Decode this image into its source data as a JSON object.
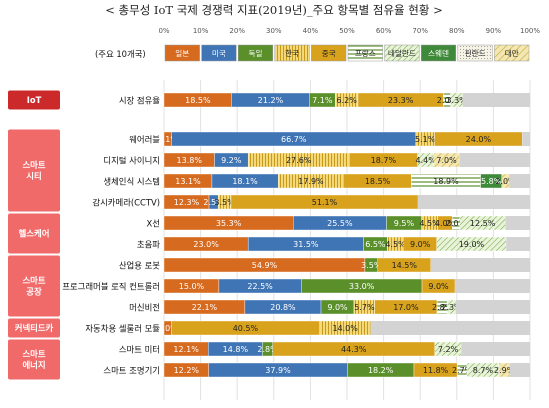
{
  "title": "< 총무성 IoT 국제 경쟁력 지표(2019년)_주요 항목별 점유율 현황 >",
  "legend_caption": "(주요 10개국)",
  "chart_data": {
    "type": "bar",
    "orientation": "horizontal",
    "stacked": "percent",
    "xlim": [
      0,
      100
    ],
    "xticks": [
      "0%",
      "10%",
      "20%",
      "30%",
      "40%",
      "50%",
      "60%",
      "70%",
      "80%",
      "90%",
      "100%"
    ],
    "countries": [
      "일본",
      "미국",
      "독일",
      "한국",
      "중국",
      "프랑스",
      "네덜란드",
      "스웨덴",
      "핀란드",
      "대만"
    ],
    "colors": {
      "일본": "#d66a1f",
      "미국": "#3f74b5",
      "독일": "#5a8f2a",
      "한국": "#ebc85a",
      "중국": "#d8a21d",
      "프랑스": "#c8d4ea",
      "네덜란드": "#d8ebc3",
      "스웨덴": "#3f8a3a",
      "핀란드": "#f1efe2",
      "대만": "#efe19c",
      "기타": "#d3d3d3"
    },
    "groups": [
      {
        "label": "IoT",
        "color": "#cc2a2a",
        "items": [
          "시장 점유율"
        ]
      },
      {
        "label": "스마트\n시티",
        "color": "#f06a6a",
        "items": [
          "웨어러블",
          "디지털 사이니지",
          "생체인식 시스템",
          "감시카메라(CCTV)"
        ]
      },
      {
        "label": "헬스케어",
        "color": "#f06a6a",
        "items": [
          "X선",
          "초음파"
        ]
      },
      {
        "label": "스마트\n공장",
        "color": "#f06a6a",
        "items": [
          "산업용 로봇",
          "프로그래머블 로직 컨트롤러",
          "머신비전"
        ]
      },
      {
        "label": "커넥티드카",
        "color": "#f06a6a",
        "items": [
          "자동차용 셀룰러 모듈"
        ]
      },
      {
        "label": "스마트\n에너지",
        "color": "#f06a6a",
        "items": [
          "스마트 미터",
          "스마트 조명기기"
        ]
      }
    ],
    "rows": [
      {
        "label": "시장 점유율",
        "segments": [
          {
            "country": "일본",
            "value": 18.5,
            "text": "18.5%"
          },
          {
            "country": "미국",
            "value": 21.2,
            "text": "21.2%"
          },
          {
            "country": "독일",
            "value": 7.1,
            "text": "7.1%"
          },
          {
            "country": "한국",
            "value": 6.2,
            "text": "6.2%"
          },
          {
            "country": "중국",
            "value": 23.3,
            "text": "23.3%"
          },
          {
            "country": "프랑스",
            "value": 2.0,
            "text": "2.0%"
          },
          {
            "country": "네덜란드",
            "value": 3.3,
            "text": "3.3%"
          },
          {
            "country": "기타",
            "value": 18.4,
            "text": ""
          }
        ]
      },
      {
        "label": "웨어러블",
        "segments": [
          {
            "country": "일본",
            "value": 2.1,
            "text": "2.1%"
          },
          {
            "country": "미국",
            "value": 66.7,
            "text": "66.7%"
          },
          {
            "country": "한국",
            "value": 5.1,
            "text": "5.1%"
          },
          {
            "country": "중국",
            "value": 24.0,
            "text": "24.0%"
          },
          {
            "country": "기타",
            "value": 2.1,
            "text": ""
          }
        ]
      },
      {
        "label": "디지털 사이니지",
        "segments": [
          {
            "country": "일본",
            "value": 13.8,
            "text": "13.8%"
          },
          {
            "country": "미국",
            "value": 9.2,
            "text": "9.2%"
          },
          {
            "country": "한국",
            "value": 27.6,
            "text": "27.6%"
          },
          {
            "country": "중국",
            "value": 18.7,
            "text": "18.7%"
          },
          {
            "country": "네덜란드",
            "value": 4.4,
            "text": "4.4%"
          },
          {
            "country": "대만",
            "value": 7.0,
            "text": "7.0%"
          },
          {
            "country": "기타",
            "value": 19.3,
            "text": ""
          }
        ]
      },
      {
        "label": "생체인식 시스템",
        "segments": [
          {
            "country": "일본",
            "value": 13.1,
            "text": "13.1%"
          },
          {
            "country": "미국",
            "value": 18.1,
            "text": "18.1%"
          },
          {
            "country": "한국",
            "value": 17.9,
            "text": "17.9%"
          },
          {
            "country": "중국",
            "value": 18.5,
            "text": "18.5%"
          },
          {
            "country": "프랑스",
            "value": 18.9,
            "text": "18.9%"
          },
          {
            "country": "스웨덴",
            "value": 5.8,
            "text": "5.8%"
          },
          {
            "country": "대만",
            "value": 2.0,
            "text": "2.0%"
          },
          {
            "country": "기타",
            "value": 5.7,
            "text": ""
          }
        ]
      },
      {
        "label": "감시카메라(CCTV)",
        "segments": [
          {
            "country": "일본",
            "value": 12.3,
            "text": "12.3%"
          },
          {
            "country": "미국",
            "value": 2.5,
            "text": "2.5%"
          },
          {
            "country": "한국",
            "value": 3.5,
            "text": "3.5%"
          },
          {
            "country": "중국",
            "value": 51.1,
            "text": "51.1%"
          },
          {
            "country": "기타",
            "value": 30.6,
            "text": ""
          }
        ]
      },
      {
        "label": "X선",
        "segments": [
          {
            "country": "일본",
            "value": 35.3,
            "text": "35.3%"
          },
          {
            "country": "미국",
            "value": 25.5,
            "text": "25.5%"
          },
          {
            "country": "독일",
            "value": 9.5,
            "text": "9.5%"
          },
          {
            "country": "한국",
            "value": 4.5,
            "text": "4.5%"
          },
          {
            "country": "중국",
            "value": 4.0,
            "text": "4.0%"
          },
          {
            "country": "프랑스",
            "value": 2.0,
            "text": "2.0%"
          },
          {
            "country": "네덜란드",
            "value": 12.5,
            "text": "12.5%"
          },
          {
            "country": "기타",
            "value": 6.7,
            "text": ""
          }
        ]
      },
      {
        "label": "초음파",
        "segments": [
          {
            "country": "일본",
            "value": 23.0,
            "text": "23.0%"
          },
          {
            "country": "미국",
            "value": 31.5,
            "text": "31.5%"
          },
          {
            "country": "독일",
            "value": 6.5,
            "text": "6.5%"
          },
          {
            "country": "한국",
            "value": 4.5,
            "text": "4.5%"
          },
          {
            "country": "중국",
            "value": 9.0,
            "text": "9.0%"
          },
          {
            "country": "네덜란드",
            "value": 19.0,
            "text": "19.0%"
          },
          {
            "country": "기타",
            "value": 6.5,
            "text": ""
          }
        ]
      },
      {
        "label": "산업용 로봇",
        "segments": [
          {
            "country": "일본",
            "value": 54.9,
            "text": "54.9%"
          },
          {
            "country": "독일",
            "value": 3.5,
            "text": "3.5%"
          },
          {
            "country": "중국",
            "value": 14.5,
            "text": "14.5%"
          },
          {
            "country": "기타",
            "value": 27.1,
            "text": ""
          }
        ]
      },
      {
        "label": "프로그래머블 로직 컨트롤러",
        "segments": [
          {
            "country": "일본",
            "value": 15.0,
            "text": "15.0%"
          },
          {
            "country": "미국",
            "value": 22.5,
            "text": "22.5%"
          },
          {
            "country": "독일",
            "value": 33.0,
            "text": "33.0%"
          },
          {
            "country": "중국",
            "value": 9.0,
            "text": "9.0%"
          },
          {
            "country": "기타",
            "value": 20.5,
            "text": ""
          }
        ]
      },
      {
        "label": "머신비전",
        "segments": [
          {
            "country": "일본",
            "value": 22.1,
            "text": "22.1%"
          },
          {
            "country": "미국",
            "value": 20.8,
            "text": "20.8%"
          },
          {
            "country": "독일",
            "value": 9.0,
            "text": "9.0%"
          },
          {
            "country": "한국",
            "value": 5.7,
            "text": "5.7%"
          },
          {
            "country": "중국",
            "value": 17.0,
            "text": "17.0%"
          },
          {
            "country": "프랑스",
            "value": 2.8,
            "text": "2.8%"
          },
          {
            "country": "네덜란드",
            "value": 2.3,
            "text": "2.3%"
          },
          {
            "country": "기타",
            "value": 20.3,
            "text": ""
          }
        ]
      },
      {
        "label": "자동차용 셀룰러 모듈",
        "segments": [
          {
            "country": "일본",
            "value": 2.0,
            "text": "2.0%"
          },
          {
            "country": "중국",
            "value": 40.5,
            "text": "40.5%"
          },
          {
            "country": "한국",
            "value": 14.0,
            "text": "14.0%"
          },
          {
            "country": "기타",
            "value": 43.5,
            "text": ""
          }
        ]
      },
      {
        "label": "스마트 미터",
        "segments": [
          {
            "country": "일본",
            "value": 12.1,
            "text": "12.1%"
          },
          {
            "country": "미국",
            "value": 14.8,
            "text": "14.8%"
          },
          {
            "country": "독일",
            "value": 2.8,
            "text": "2.8%"
          },
          {
            "country": "중국",
            "value": 44.3,
            "text": "44.3%"
          },
          {
            "country": "네덜란드",
            "value": 7.2,
            "text": "7.2%"
          },
          {
            "country": "기타",
            "value": 18.8,
            "text": ""
          }
        ]
      },
      {
        "label": "스마트 조명기기",
        "segments": [
          {
            "country": "일본",
            "value": 12.2,
            "text": "12.2%"
          },
          {
            "country": "미국",
            "value": 37.9,
            "text": "37.9%"
          },
          {
            "country": "독일",
            "value": 18.2,
            "text": "18.2%"
          },
          {
            "country": "중국",
            "value": 11.8,
            "text": "11.8%"
          },
          {
            "country": "프랑스",
            "value": 2.7,
            "text": "2.7%"
          },
          {
            "country": "네덜란드",
            "value": 8.7,
            "text": "8.7%"
          },
          {
            "country": "대만",
            "value": 2.9,
            "text": "2.9%"
          },
          {
            "country": "기타",
            "value": 5.6,
            "text": ""
          }
        ]
      }
    ]
  }
}
